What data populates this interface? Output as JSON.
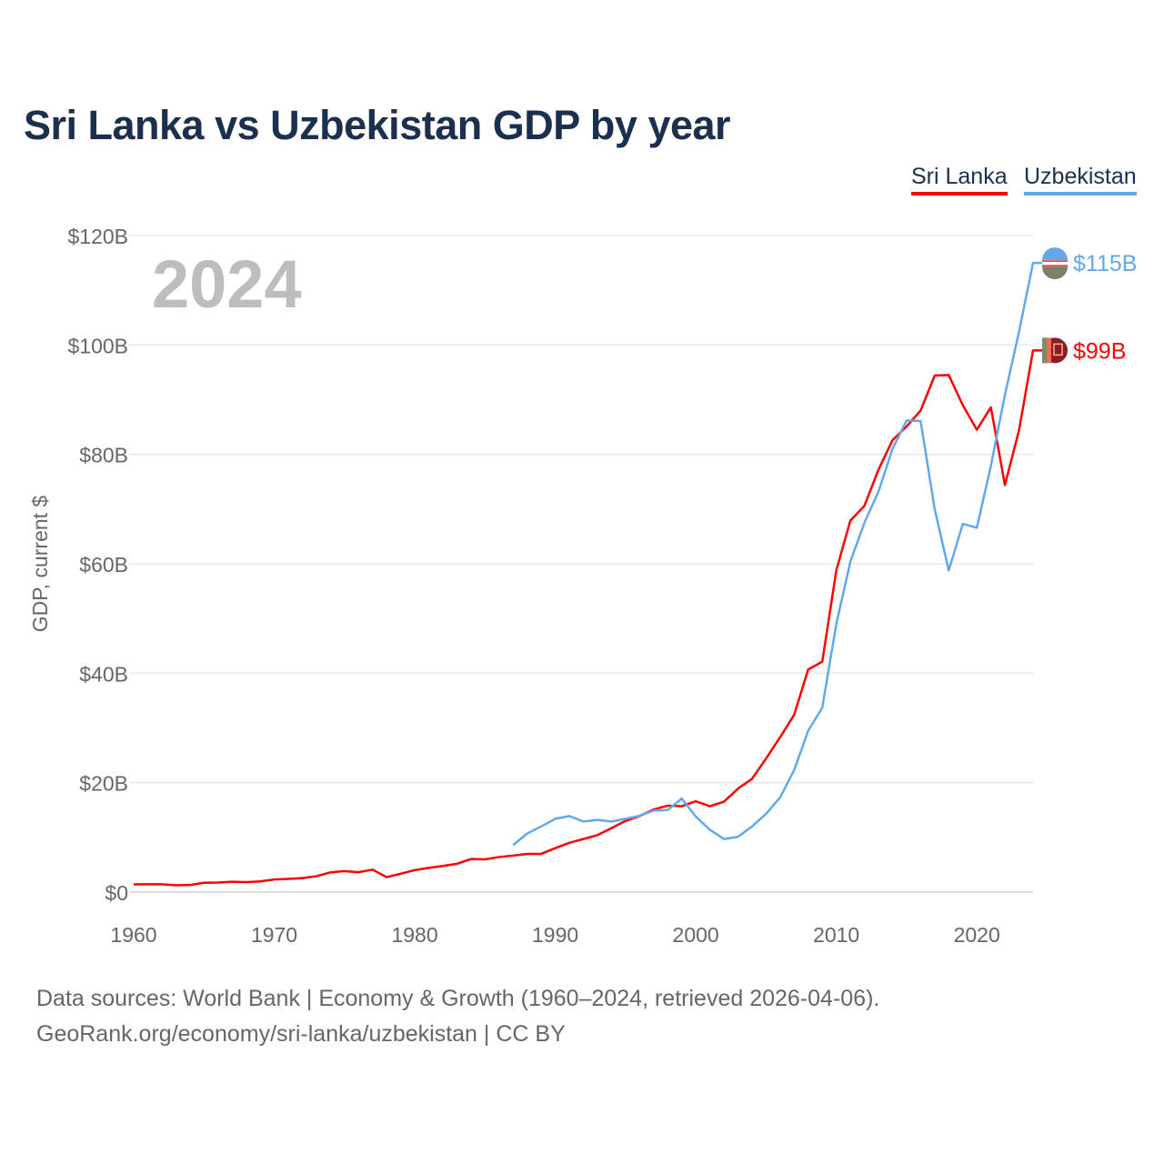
{
  "chart_data": {
    "type": "line",
    "title": "Sri Lanka vs Uzbekistan GDP by year",
    "ylabel": "GDP, current $",
    "xlabel": "",
    "year_watermark": "2024",
    "xlim": [
      1960,
      2024
    ],
    "ylim": [
      0,
      120
    ],
    "x_ticks": [
      1960,
      1970,
      1980,
      1990,
      2000,
      2010,
      2020
    ],
    "y_ticks": [
      0,
      20,
      40,
      60,
      80,
      100,
      120
    ],
    "y_tick_labels": [
      "$0",
      "$20B",
      "$40B",
      "$60B",
      "$80B",
      "$100B",
      "$120B"
    ],
    "grid": true,
    "legend_position": "top-right",
    "series": [
      {
        "name": "Sri Lanka",
        "color": "#ff0000",
        "end_label": "$99B",
        "flag_icon": "sri-lanka-flag-icon",
        "start_year": 1960,
        "values": [
          1.42,
          1.44,
          1.43,
          1.24,
          1.3,
          1.7,
          1.75,
          1.9,
          1.83,
          1.96,
          2.3,
          2.4,
          2.55,
          2.9,
          3.6,
          3.84,
          3.63,
          4.1,
          2.73,
          3.36,
          4.02,
          4.42,
          4.77,
          5.17,
          6.04,
          5.98,
          6.41,
          6.68,
          6.98,
          6.99,
          8.03,
          9.0,
          9.7,
          10.4,
          11.7,
          13.0,
          13.9,
          15.1,
          15.8,
          15.7,
          16.6,
          15.7,
          16.5,
          18.9,
          20.7,
          24.4,
          28.3,
          32.4,
          40.7,
          42.1,
          58.8,
          67.9,
          70.6,
          77.2,
          82.6,
          85.1,
          88.0,
          94.4,
          94.5,
          89.0,
          84.5,
          88.6,
          74.4,
          84.4,
          99.0
        ]
      },
      {
        "name": "Uzbekistan",
        "color": "#63a8ea",
        "end_label": "$115B",
        "flag_icon": "uzbekistan-flag-icon",
        "start_year": 1987,
        "values": [
          8.6,
          10.7,
          12.0,
          13.4,
          13.9,
          12.9,
          13.2,
          12.9,
          13.4,
          13.95,
          14.9,
          15.0,
          17.1,
          13.8,
          11.4,
          9.7,
          10.1,
          12.0,
          14.3,
          17.3,
          22.3,
          29.5,
          33.7,
          49.0,
          60.4,
          67.5,
          73.2,
          81.0,
          86.2,
          86.1,
          70.0,
          58.8,
          67.3,
          66.6,
          77.9,
          90.9,
          102.4,
          115.0
        ]
      }
    ]
  },
  "footer": {
    "line1": "Data sources: World Bank | Economy & Growth (1960–2024, retrieved 2026-04-06).",
    "line2": "GeoRank.org/economy/sri-lanka/uzbekistan | CC BY"
  }
}
